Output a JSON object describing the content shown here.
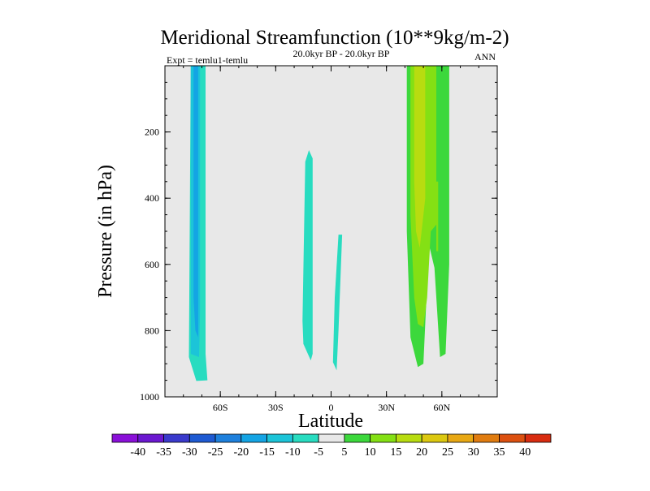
{
  "chart_data": {
    "type": "contour",
    "title": "Meridional Streamfunction (10**9kg/m-2)",
    "subtitle_left": "Expt = temlu1-temlu",
    "subtitle_center": "20.0kyr BP - 20.0kyr BP",
    "subtitle_right": "ANN",
    "xlabel": "Latitude",
    "ylabel": "Pressure (in hPa)",
    "xlim": [
      -90,
      90
    ],
    "ylim": [
      1000,
      0
    ],
    "x_ticks": [
      {
        "value": -60,
        "label": "60S"
      },
      {
        "value": -30,
        "label": "30S"
      },
      {
        "value": 0,
        "label": "0"
      },
      {
        "value": 30,
        "label": "30N"
      },
      {
        "value": 60,
        "label": "60N"
      }
    ],
    "y_ticks": [
      {
        "value": 200,
        "label": "200"
      },
      {
        "value": 400,
        "label": "400"
      },
      {
        "value": 600,
        "label": "600"
      },
      {
        "value": 800,
        "label": "800"
      },
      {
        "value": 1000,
        "label": "1000"
      }
    ],
    "background_color": "#e8e8e8",
    "colorbar": {
      "labels": [
        "-40",
        "-35",
        "-30",
        "-25",
        "-20",
        "-15",
        "-10",
        "-5",
        "5",
        "10",
        "15",
        "20",
        "25",
        "30",
        "35",
        "40"
      ],
      "colors": [
        "#8a10d8",
        "#6b18d0",
        "#3a3acc",
        "#1e5ad2",
        "#1e80dc",
        "#14a4e4",
        "#1cc4d8",
        "#28dcc0",
        "#e8e8e8",
        "#3cd83c",
        "#84e014",
        "#b8dc10",
        "#dcc810",
        "#e8a814",
        "#e07c10",
        "#dc5010",
        "#d82c10"
      ]
    },
    "regions": [
      {
        "level": "-10 to -5",
        "color": "#28dcc0",
        "points": [
          [
            -76,
            0
          ],
          [
            -68,
            0
          ],
          [
            -68,
            870
          ],
          [
            -67,
            950
          ],
          [
            -73,
            952
          ],
          [
            -77,
            880
          ]
        ]
      },
      {
        "level": "-15 to -10",
        "color": "#1cc4d8",
        "points": [
          [
            -76,
            0
          ],
          [
            -71,
            0
          ],
          [
            -71,
            740
          ],
          [
            -71.5,
            880
          ],
          [
            -76,
            870
          ]
        ]
      },
      {
        "level": "-20 to -15",
        "color": "#14a4e4",
        "points": [
          [
            -74.5,
            0
          ],
          [
            -72,
            0
          ],
          [
            -72,
            820
          ],
          [
            -73.5,
            800
          ],
          [
            -74.5,
            700
          ]
        ]
      },
      {
        "level": "-10 to -5",
        "color": "#28dcc0",
        "points": [
          [
            -14,
            290
          ],
          [
            -12,
            255
          ],
          [
            -10,
            280
          ],
          [
            -10,
            870
          ],
          [
            -11,
            890
          ],
          [
            -15,
            840
          ],
          [
            -15.5,
            770
          ]
        ]
      },
      {
        "level": "-10 to -5",
        "color": "#28dcc0",
        "points": [
          [
            4,
            510
          ],
          [
            6,
            510
          ],
          [
            4,
            800
          ],
          [
            3,
            920
          ],
          [
            1,
            895
          ],
          [
            2,
            700
          ]
        ]
      },
      {
        "level": "5 to 10",
        "color": "#3cd83c",
        "points": [
          [
            41,
            0
          ],
          [
            64,
            0
          ],
          [
            64,
            600
          ],
          [
            62,
            870
          ],
          [
            59,
            880
          ],
          [
            56,
            610
          ],
          [
            53,
            540
          ],
          [
            50,
            900
          ],
          [
            47,
            910
          ],
          [
            43,
            820
          ],
          [
            41,
            500
          ]
        ]
      },
      {
        "level": "10 to 15",
        "color": "#84e014",
        "points": [
          [
            43,
            0
          ],
          [
            57,
            0
          ],
          [
            57,
            480
          ],
          [
            54,
            500
          ],
          [
            52,
            700
          ],
          [
            50,
            790
          ],
          [
            47,
            780
          ],
          [
            45,
            700
          ],
          [
            43,
            450
          ]
        ]
      },
      {
        "level": "10 to 15",
        "color": "#84e014",
        "points": [
          [
            57,
            350
          ],
          [
            58,
            350
          ],
          [
            58,
            560
          ],
          [
            57,
            560
          ]
        ]
      },
      {
        "level": "15 to 20",
        "color": "#b8dc10",
        "points": [
          [
            45,
            0
          ],
          [
            51,
            0
          ],
          [
            51,
            400
          ],
          [
            48,
            550
          ],
          [
            46,
            500
          ],
          [
            45,
            350
          ]
        ]
      }
    ]
  }
}
